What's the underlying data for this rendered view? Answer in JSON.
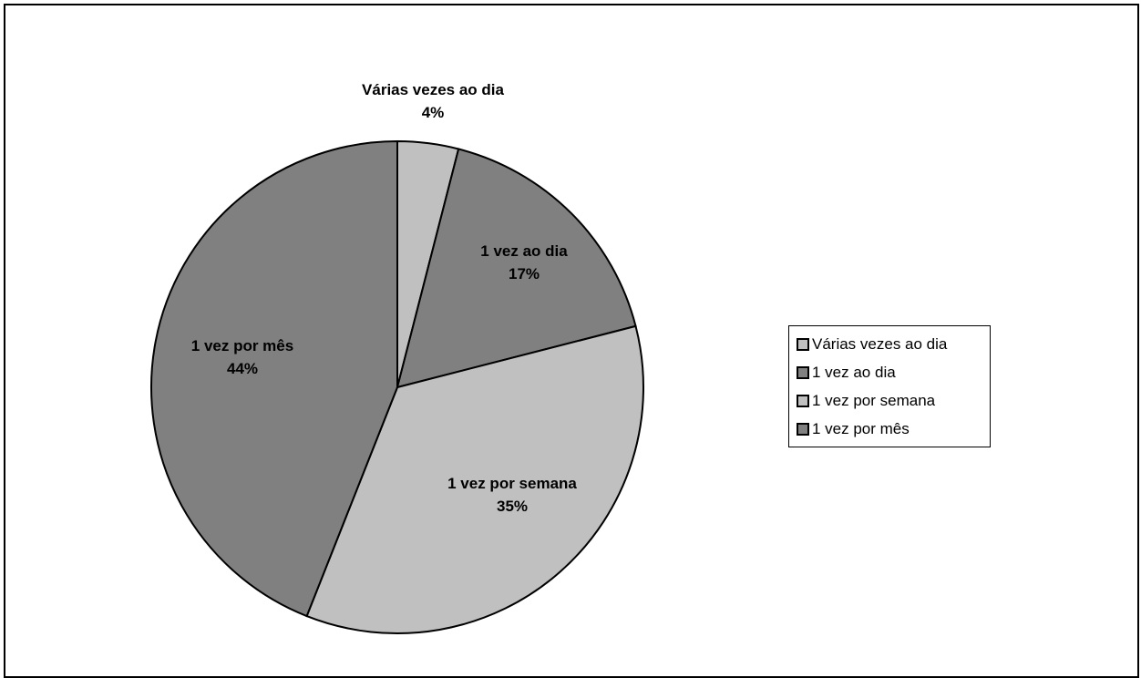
{
  "chart_data": {
    "type": "pie",
    "categories": [
      "Várias vezes ao dia",
      "1 vez ao dia",
      "1 vez por semana",
      "1 vez por mês"
    ],
    "values": [
      4,
      17,
      35,
      44
    ],
    "value_labels": [
      "4%",
      "17%",
      "35%",
      "44%"
    ],
    "colors": [
      "#c0c0c0",
      "#808080",
      "#c0c0c0",
      "#808080"
    ],
    "legend_placement": "right"
  }
}
